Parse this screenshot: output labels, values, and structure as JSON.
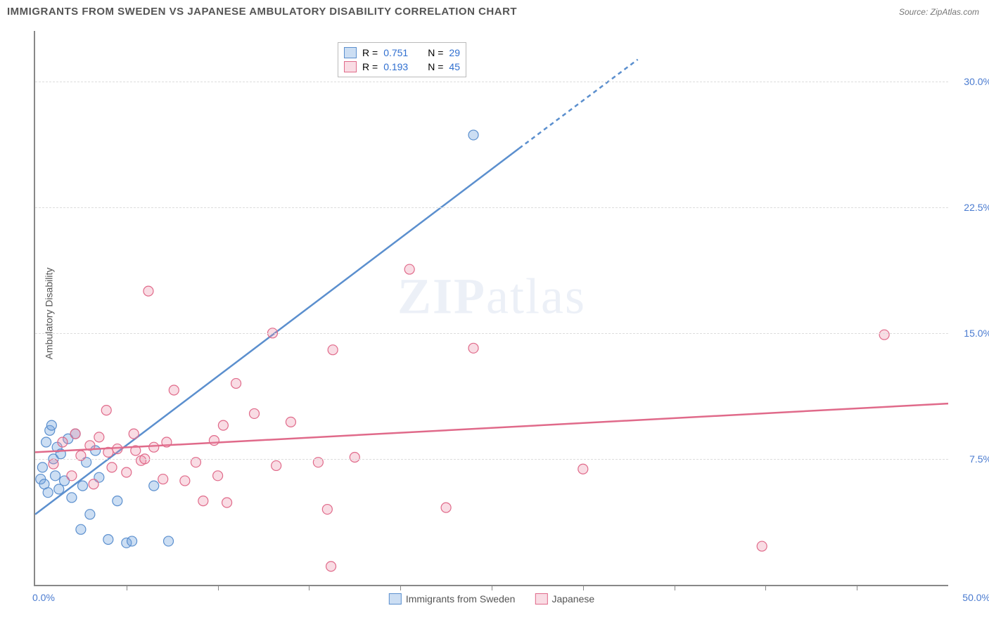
{
  "title": "IMMIGRANTS FROM SWEDEN VS JAPANESE AMBULATORY DISABILITY CORRELATION CHART",
  "source": "Source: ZipAtlas.com",
  "ylabel": "Ambulatory Disability",
  "watermark": "ZIPatlas",
  "chart": {
    "type": "scatter",
    "xlim": [
      0,
      50
    ],
    "ylim": [
      0,
      33
    ],
    "x_tick_step": 5,
    "y_tick_step": 7.5,
    "x_label_min": "0.0%",
    "x_label_max": "50.0%",
    "y_labels": [
      {
        "v": 7.5,
        "t": "7.5%"
      },
      {
        "v": 15,
        "t": "15.0%"
      },
      {
        "v": 22.5,
        "t": "22.5%"
      },
      {
        "v": 30,
        "t": "30.0%"
      }
    ],
    "grid_color": "#dcdcdc",
    "axis_color": "#888888",
    "background_color": "#ffffff",
    "label_color": "#4a7bd0",
    "label_fontsize": 14,
    "marker_radius": 7,
    "marker_fill_opacity": 0.3,
    "line_width": 2.5,
    "legend_top": {
      "rows": [
        {
          "swatch": "blue",
          "r": "R =",
          "r_val": "0.751",
          "n": "N =",
          "n_val": "29"
        },
        {
          "swatch": "pink",
          "r": "R =",
          "r_val": "0.193",
          "n": "N =",
          "n_val": "45"
        }
      ]
    },
    "legend_bottom": [
      {
        "swatch": "blue",
        "label": "Immigrants from Sweden"
      },
      {
        "swatch": "pink",
        "label": "Japanese"
      }
    ],
    "series": [
      {
        "name": "sweden",
        "color": "#5b8fce",
        "fill": "rgba(108,160,220,0.35)",
        "trend": {
          "x1": 0,
          "y1": 4.2,
          "x2": 26.5,
          "y2": 26.0,
          "dash_from_x": 26.5,
          "dash_to_x": 33,
          "dash_to_y": 31.3
        },
        "points": [
          [
            0.3,
            6.3
          ],
          [
            0.4,
            7.0
          ],
          [
            0.5,
            6.0
          ],
          [
            0.6,
            8.5
          ],
          [
            0.7,
            5.5
          ],
          [
            0.8,
            9.2
          ],
          [
            0.9,
            9.5
          ],
          [
            1.0,
            7.5
          ],
          [
            1.1,
            6.5
          ],
          [
            1.2,
            8.2
          ],
          [
            1.3,
            5.7
          ],
          [
            1.4,
            7.8
          ],
          [
            1.6,
            6.2
          ],
          [
            1.8,
            8.7
          ],
          [
            2.0,
            5.2
          ],
          [
            2.2,
            9.0
          ],
          [
            2.5,
            3.3
          ],
          [
            2.6,
            5.9
          ],
          [
            2.8,
            7.3
          ],
          [
            3.0,
            4.2
          ],
          [
            3.3,
            8.0
          ],
          [
            3.5,
            6.4
          ],
          [
            4.0,
            2.7
          ],
          [
            4.5,
            5.0
          ],
          [
            5.0,
            2.5
          ],
          [
            5.3,
            2.6
          ],
          [
            6.5,
            5.9
          ],
          [
            7.3,
            2.6
          ],
          [
            24.0,
            26.8
          ]
        ]
      },
      {
        "name": "japanese",
        "color": "#e06a8a",
        "fill": "rgba(235,140,165,0.30)",
        "trend": {
          "x1": 0,
          "y1": 7.9,
          "x2": 50,
          "y2": 10.8
        },
        "points": [
          [
            1.0,
            7.2
          ],
          [
            1.5,
            8.5
          ],
          [
            2.0,
            6.5
          ],
          [
            2.2,
            9.0
          ],
          [
            2.5,
            7.7
          ],
          [
            3.0,
            8.3
          ],
          [
            3.2,
            6.0
          ],
          [
            3.5,
            8.8
          ],
          [
            3.9,
            10.4
          ],
          [
            4.2,
            7.0
          ],
          [
            4.5,
            8.1
          ],
          [
            5.0,
            6.7
          ],
          [
            5.4,
            9.0
          ],
          [
            5.8,
            7.4
          ],
          [
            6.2,
            17.5
          ],
          [
            6.5,
            8.2
          ],
          [
            7.0,
            6.3
          ],
          [
            7.2,
            8.5
          ],
          [
            7.6,
            11.6
          ],
          [
            8.2,
            6.2
          ],
          [
            8.8,
            7.3
          ],
          [
            9.2,
            5.0
          ],
          [
            9.8,
            8.6
          ],
          [
            10.0,
            6.5
          ],
          [
            10.3,
            9.5
          ],
          [
            10.5,
            4.9
          ],
          [
            11.0,
            12.0
          ],
          [
            12.0,
            10.2
          ],
          [
            13.0,
            15.0
          ],
          [
            13.2,
            7.1
          ],
          [
            14.0,
            9.7
          ],
          [
            15.5,
            7.3
          ],
          [
            16.0,
            4.5
          ],
          [
            16.2,
            1.1
          ],
          [
            16.3,
            14.0
          ],
          [
            17.5,
            7.6
          ],
          [
            20.5,
            18.8
          ],
          [
            22.5,
            4.6
          ],
          [
            24.0,
            14.1
          ],
          [
            30.0,
            6.9
          ],
          [
            39.8,
            2.3
          ],
          [
            46.5,
            14.9
          ],
          [
            5.5,
            8.0
          ],
          [
            6.0,
            7.5
          ],
          [
            4.0,
            7.9
          ]
        ]
      }
    ]
  }
}
